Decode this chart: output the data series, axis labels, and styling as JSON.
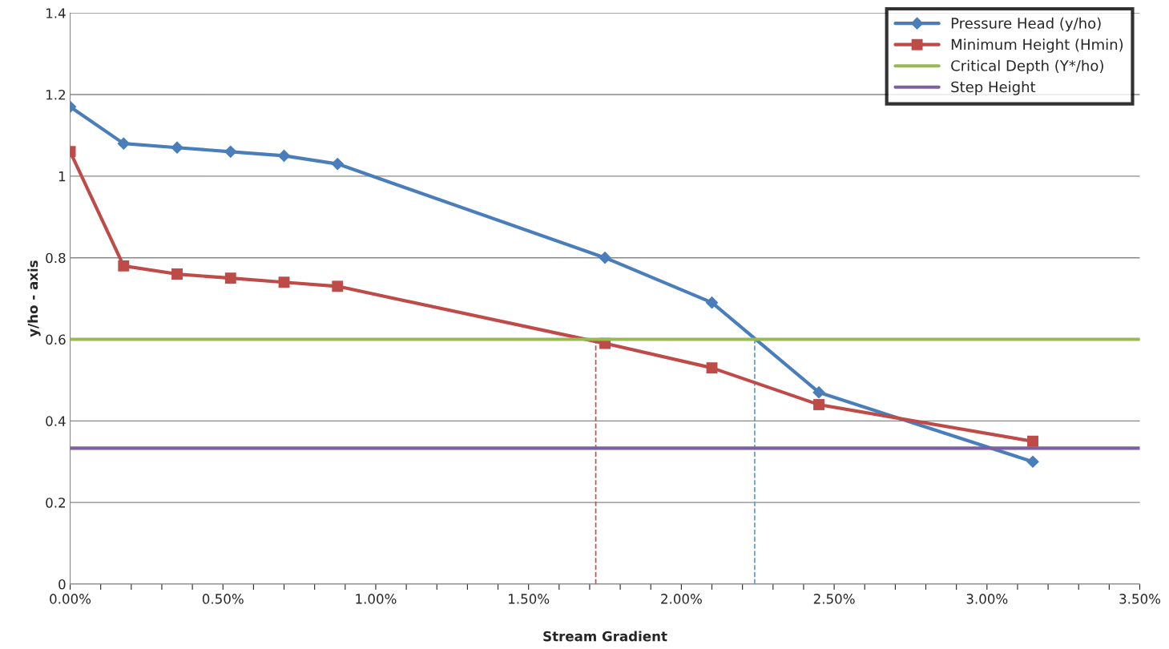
{
  "chart_data": {
    "type": "line",
    "xlabel": "Stream Gradient",
    "ylabel": "y/ho - axis",
    "xlim": [
      0,
      3.5
    ],
    "ylim": [
      0,
      1.4
    ],
    "xticks": [
      {
        "value": 0,
        "label": "0.00%"
      },
      {
        "value": 0.1,
        "label": null
      },
      {
        "value": 0.2,
        "label": null
      },
      {
        "value": 0.3,
        "label": null
      },
      {
        "value": 0.4,
        "label": null
      },
      {
        "value": 0.5,
        "label": "0.50%"
      },
      {
        "value": 0.6,
        "label": null
      },
      {
        "value": 0.7,
        "label": null
      },
      {
        "value": 0.8,
        "label": null
      },
      {
        "value": 0.9,
        "label": null
      },
      {
        "value": 1.0,
        "label": "1.00%"
      },
      {
        "value": 1.1,
        "label": null
      },
      {
        "value": 1.2,
        "label": null
      },
      {
        "value": 1.3,
        "label": null
      },
      {
        "value": 1.4,
        "label": null
      },
      {
        "value": 1.5,
        "label": "1.50%"
      },
      {
        "value": 1.6,
        "label": null
      },
      {
        "value": 1.7,
        "label": null
      },
      {
        "value": 1.8,
        "label": null
      },
      {
        "value": 1.9,
        "label": null
      },
      {
        "value": 2.0,
        "label": "2.00%"
      },
      {
        "value": 2.1,
        "label": null
      },
      {
        "value": 2.2,
        "label": null
      },
      {
        "value": 2.3,
        "label": null
      },
      {
        "value": 2.4,
        "label": null
      },
      {
        "value": 2.5,
        "label": "2.50%"
      },
      {
        "value": 2.6,
        "label": null
      },
      {
        "value": 2.7,
        "label": null
      },
      {
        "value": 2.8,
        "label": null
      },
      {
        "value": 2.9,
        "label": null
      },
      {
        "value": 3.0,
        "label": "3.00%"
      },
      {
        "value": 3.1,
        "label": null
      },
      {
        "value": 3.2,
        "label": null
      },
      {
        "value": 3.3,
        "label": null
      },
      {
        "value": 3.4,
        "label": null
      },
      {
        "value": 3.5,
        "label": "3.50%"
      }
    ],
    "yticks": [
      0,
      0.2,
      0.4,
      0.6,
      0.8,
      1,
      1.2,
      1.4
    ],
    "grid": "y",
    "legend": "top right",
    "series": [
      {
        "name": "Pressure Head (y/ho)",
        "color": "#4a7ebb",
        "marker": "diamond",
        "x": [
          0,
          0.175,
          0.35,
          0.525,
          0.7,
          0.875,
          1.75,
          2.1,
          2.45,
          3.15
        ],
        "values": [
          1.17,
          1.08,
          1.07,
          1.06,
          1.05,
          1.03,
          0.8,
          0.69,
          0.47,
          0.3
        ]
      },
      {
        "name": "Minimum Height (Hmin)",
        "color": "#be4b48",
        "marker": "square",
        "x": [
          0,
          0.175,
          0.35,
          0.525,
          0.7,
          0.875,
          1.75,
          2.1,
          2.45,
          3.15
        ],
        "values": [
          1.06,
          0.78,
          0.76,
          0.75,
          0.74,
          0.73,
          0.59,
          0.53,
          0.44,
          0.35
        ]
      },
      {
        "name": "Critical Depth (Y*/ho)",
        "color": "#98b954",
        "x": [
          0,
          3.5
        ],
        "values": [
          0.6,
          0.6
        ]
      },
      {
        "name": "Step Height",
        "color": "#7d60a0",
        "x": [
          0,
          3.5
        ],
        "values": [
          0.333,
          0.333
        ]
      },
      {
        "color": "#c0504d",
        "line_style": "dashed",
        "x": [
          1.72,
          1.72
        ],
        "values": [
          0,
          0.6
        ]
      },
      {
        "color": "#5b9bd5",
        "line_style": "dashed",
        "x": [
          2.24,
          2.24
        ],
        "values": [
          0,
          0.6
        ]
      }
    ]
  }
}
